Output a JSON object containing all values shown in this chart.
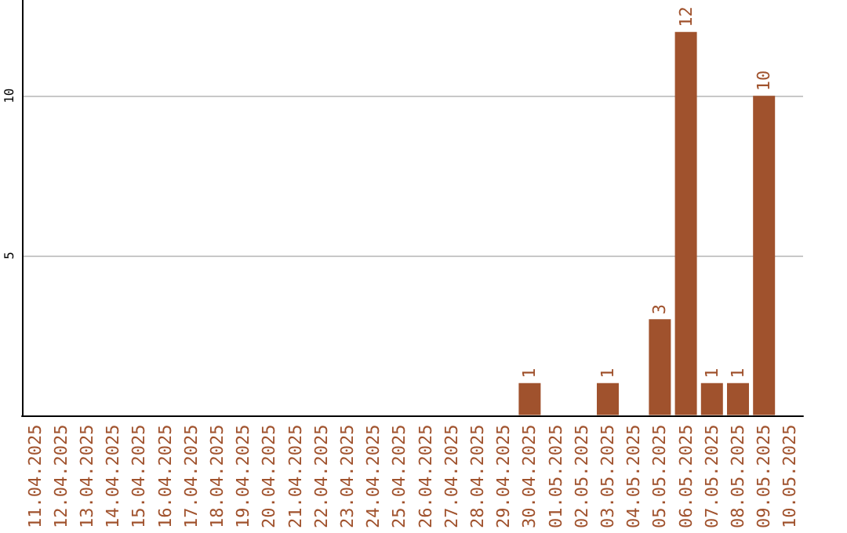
{
  "chart_data": {
    "type": "bar",
    "categories": [
      "11.04.2025",
      "12.04.2025",
      "13.04.2025",
      "14.04.2025",
      "15.04.2025",
      "16.04.2025",
      "17.04.2025",
      "18.04.2025",
      "19.04.2025",
      "20.04.2025",
      "21.04.2025",
      "22.04.2025",
      "23.04.2025",
      "24.04.2025",
      "25.04.2025",
      "26.04.2025",
      "27.04.2025",
      "28.04.2025",
      "29.04.2025",
      "30.04.2025",
      "01.05.2025",
      "02.05.2025",
      "03.05.2025",
      "04.05.2025",
      "05.05.2025",
      "06.05.2025",
      "07.05.2025",
      "08.05.2025",
      "09.05.2025",
      "10.05.2025"
    ],
    "values": [
      0,
      0,
      0,
      0,
      0,
      0,
      0,
      0,
      0,
      0,
      0,
      0,
      0,
      0,
      0,
      0,
      0,
      0,
      0,
      1,
      0,
      0,
      1,
      0,
      3,
      12,
      1,
      1,
      10,
      0
    ],
    "value_labels": [
      null,
      null,
      null,
      null,
      null,
      null,
      null,
      null,
      null,
      null,
      null,
      null,
      null,
      null,
      null,
      null,
      null,
      null,
      null,
      "1",
      null,
      null,
      "1",
      null,
      "3",
      "12",
      "1",
      "1",
      "10",
      null
    ],
    "color": "#a0522d",
    "ylim": [
      0,
      13
    ],
    "yticks": [
      5,
      10
    ],
    "grid": "y"
  }
}
